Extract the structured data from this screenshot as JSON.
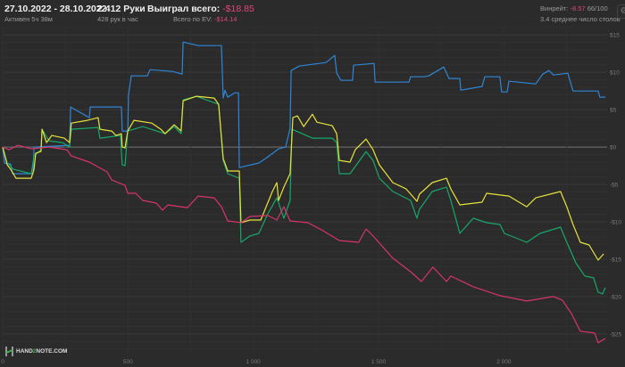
{
  "header": {
    "date_range": "27.10.2022 - 28.10.2022",
    "active_time": "Активен 5ч 38м",
    "hands": "2 412 Руки",
    "hands_per_hour": "428 рук в час",
    "won_total_label": "Выиграл всего:",
    "won_total_value": "-$18.85",
    "ev_label": "Всего по EV:",
    "ev_value": "-$14.14",
    "winrate_label": "Винрейт:",
    "winrate_value": "-8.57",
    "winrate_unit": "66/100",
    "avg_tables": "3.4 среднее число столов",
    "settings_icon": "gear-icon"
  },
  "logo": {
    "text_a": "HAND",
    "text_b": "2",
    "text_c": "NOTE.COM"
  },
  "chart_data": {
    "type": "line",
    "xlim": [
      0,
      2412
    ],
    "ylim": [
      -27.4,
      16.1
    ],
    "x_ticks": [
      0,
      500,
      1000,
      1500,
      2000
    ],
    "x_tick_labels": [
      "0",
      "500",
      "1 000",
      "1 500",
      "2 000"
    ],
    "y_ticks": [
      15,
      10,
      5,
      0,
      -5,
      -10,
      -15,
      -20,
      -25
    ],
    "y_tick_labels": [
      "$15",
      "$10",
      "$5",
      "$0",
      "-$5",
      "-$10",
      "-$15",
      "-$20",
      "-$25"
    ],
    "grid": true,
    "series": [
      {
        "color": "#2f86d6",
        "points": [
          [
            0,
            0
          ],
          [
            7,
            -2.14
          ],
          [
            32,
            -2.26
          ],
          [
            39,
            -3.57
          ],
          [
            121,
            -3.57
          ],
          [
            125,
            0
          ],
          [
            267,
            0.24
          ],
          [
            271,
            5.36
          ],
          [
            346,
            3.93
          ],
          [
            349,
            5.36
          ],
          [
            474,
            5.36
          ],
          [
            477,
            2.14
          ],
          [
            499,
            2.14
          ],
          [
            502,
            6.9
          ],
          [
            513,
            9.52
          ],
          [
            577,
            9.52
          ],
          [
            588,
            10.36
          ],
          [
            677,
            10.12
          ],
          [
            716,
            9.76
          ],
          [
            720,
            14.05
          ],
          [
            780,
            13.57
          ],
          [
            873,
            13.57
          ],
          [
            880,
            6.55
          ],
          [
            887,
            7.62
          ],
          [
            898,
            6.67
          ],
          [
            926,
            7.26
          ],
          [
            941,
            7.26
          ],
          [
            944,
            -2.74
          ],
          [
            1022,
            -2.14
          ],
          [
            1058,
            -1.31
          ],
          [
            1101,
            -0.24
          ],
          [
            1129,
            0
          ],
          [
            1147,
            2.5
          ],
          [
            1151,
            10.24
          ],
          [
            1183,
            10.83
          ],
          [
            1290,
            11.31
          ],
          [
            1325,
            12.26
          ],
          [
            1333,
            9.88
          ],
          [
            1350,
            8.93
          ],
          [
            1396,
            8.93
          ],
          [
            1400,
            10.95
          ],
          [
            1482,
            11.19
          ],
          [
            1486,
            8.69
          ],
          [
            1621,
            8.69
          ],
          [
            1628,
            9.4
          ],
          [
            1682,
            9.4
          ],
          [
            1700,
            9.52
          ],
          [
            1760,
            10.71
          ],
          [
            1781,
            9.17
          ],
          [
            1824,
            9.17
          ],
          [
            1828,
            7.62
          ],
          [
            1913,
            8.1
          ],
          [
            1924,
            9.4
          ],
          [
            1984,
            9.4
          ],
          [
            1991,
            7.38
          ],
          [
            2013,
            7.38
          ],
          [
            2020,
            8.81
          ],
          [
            2127,
            8.45
          ],
          [
            2155,
            9.76
          ],
          [
            2180,
            10.24
          ],
          [
            2198,
            9.64
          ],
          [
            2255,
            9.88
          ],
          [
            2276,
            7.5
          ],
          [
            2376,
            7.5
          ],
          [
            2383,
            6.67
          ],
          [
            2405,
            6.67
          ]
        ]
      },
      {
        "color": "#17a869",
        "points": [
          [
            0,
            0
          ],
          [
            18,
            -2.14
          ],
          [
            43,
            -2.98
          ],
          [
            114,
            -3.57
          ],
          [
            125,
            -1.19
          ],
          [
            153,
            -0.36
          ],
          [
            157,
            2.38
          ],
          [
            185,
            0.83
          ],
          [
            239,
            0.6
          ],
          [
            267,
            0
          ],
          [
            274,
            2.38
          ],
          [
            381,
            2.62
          ],
          [
            388,
            1.19
          ],
          [
            470,
            1.55
          ],
          [
            477,
            -2.38
          ],
          [
            488,
            -2.5
          ],
          [
            499,
            2.14
          ],
          [
            559,
            2.74
          ],
          [
            648,
            1.79
          ],
          [
            684,
            2.74
          ],
          [
            712,
            1.79
          ],
          [
            720,
            6.31
          ],
          [
            773,
            6.79
          ],
          [
            862,
            5.71
          ],
          [
            880,
            -1.79
          ],
          [
            898,
            -3.57
          ],
          [
            944,
            -4.17
          ],
          [
            951,
            -12.74
          ],
          [
            987,
            -11.9
          ],
          [
            1022,
            -11.55
          ],
          [
            1058,
            -8.93
          ],
          [
            1094,
            -6.79
          ],
          [
            1122,
            -9.52
          ],
          [
            1147,
            -7.14
          ],
          [
            1154,
            2.38
          ],
          [
            1236,
            1.19
          ],
          [
            1315,
            1.19
          ],
          [
            1333,
            0.6
          ],
          [
            1343,
            -3.57
          ],
          [
            1386,
            -3.57
          ],
          [
            1450,
            -0.6
          ],
          [
            1478,
            -1.79
          ],
          [
            1503,
            -4.17
          ],
          [
            1557,
            -5.95
          ],
          [
            1628,
            -7.14
          ],
          [
            1653,
            -9.52
          ],
          [
            1663,
            -8.33
          ],
          [
            1714,
            -5.95
          ],
          [
            1771,
            -5.36
          ],
          [
            1788,
            -7.14
          ],
          [
            1824,
            -11.55
          ],
          [
            1878,
            -9.52
          ],
          [
            1931,
            -10.12
          ],
          [
            1984,
            -10.36
          ],
          [
            2002,
            -11.55
          ],
          [
            2091,
            -12.74
          ],
          [
            2144,
            -11.55
          ],
          [
            2226,
            -10.71
          ],
          [
            2251,
            -12.74
          ],
          [
            2287,
            -15.48
          ],
          [
            2323,
            -17.26
          ],
          [
            2358,
            -17.5
          ],
          [
            2376,
            -19.4
          ],
          [
            2394,
            -19.64
          ],
          [
            2405,
            -18.81
          ]
        ]
      },
      {
        "color": "#e8e23a",
        "points": [
          [
            0,
            0
          ],
          [
            18,
            -2.38
          ],
          [
            32,
            -2.98
          ],
          [
            53,
            -4.17
          ],
          [
            114,
            -4.17
          ],
          [
            125,
            -2.98
          ],
          [
            132,
            -0.83
          ],
          [
            153,
            -0.6
          ],
          [
            157,
            2.38
          ],
          [
            175,
            0.6
          ],
          [
            196,
            1.55
          ],
          [
            246,
            1.19
          ],
          [
            267,
            0.6
          ],
          [
            274,
            3.21
          ],
          [
            338,
            3.57
          ],
          [
            381,
            3.93
          ],
          [
            388,
            2.38
          ],
          [
            435,
            2.14
          ],
          [
            452,
            1.55
          ],
          [
            474,
            1.79
          ],
          [
            477,
            0
          ],
          [
            488,
            -0.12
          ],
          [
            499,
            2.14
          ],
          [
            524,
            3.57
          ],
          [
            595,
            3.21
          ],
          [
            631,
            2.38
          ],
          [
            648,
            1.79
          ],
          [
            684,
            2.98
          ],
          [
            712,
            2.14
          ],
          [
            720,
            6.19
          ],
          [
            773,
            6.79
          ],
          [
            844,
            6.55
          ],
          [
            862,
            5.71
          ],
          [
            880,
            -1.55
          ],
          [
            898,
            -3.21
          ],
          [
            944,
            -3.21
          ],
          [
            951,
            -10.12
          ],
          [
            987,
            -9.76
          ],
          [
            1030,
            -9.76
          ],
          [
            1076,
            -5.95
          ],
          [
            1094,
            -4.76
          ],
          [
            1101,
            -7.14
          ],
          [
            1122,
            -5.36
          ],
          [
            1147,
            -3.57
          ],
          [
            1158,
            3.93
          ],
          [
            1176,
            4.17
          ],
          [
            1201,
            2.74
          ],
          [
            1236,
            4.4
          ],
          [
            1254,
            3.33
          ],
          [
            1315,
            2.86
          ],
          [
            1333,
            1.79
          ],
          [
            1343,
            -1.79
          ],
          [
            1386,
            -2.02
          ],
          [
            1407,
            -0.36
          ],
          [
            1450,
            1.07
          ],
          [
            1478,
            -0.36
          ],
          [
            1503,
            -2.38
          ],
          [
            1557,
            -4.76
          ],
          [
            1610,
            -5.6
          ],
          [
            1653,
            -7.26
          ],
          [
            1663,
            -6.31
          ],
          [
            1714,
            -4.76
          ],
          [
            1771,
            -4.17
          ],
          [
            1788,
            -5.6
          ],
          [
            1824,
            -7.74
          ],
          [
            1913,
            -7.38
          ],
          [
            1931,
            -6.19
          ],
          [
            2020,
            -6.55
          ],
          [
            2091,
            -7.98
          ],
          [
            2127,
            -6.79
          ],
          [
            2226,
            -5.95
          ],
          [
            2251,
            -7.98
          ],
          [
            2276,
            -10.36
          ],
          [
            2305,
            -12.74
          ],
          [
            2340,
            -13.1
          ],
          [
            2376,
            -15.12
          ],
          [
            2398,
            -14.29
          ]
        ]
      },
      {
        "color": "#d8336e",
        "points": [
          [
            0,
            0
          ],
          [
            25,
            -0.36
          ],
          [
            61,
            0.24
          ],
          [
            114,
            -0.24
          ],
          [
            185,
            0
          ],
          [
            256,
            -0.36
          ],
          [
            274,
            -1.19
          ],
          [
            346,
            -2.02
          ],
          [
            417,
            -3.33
          ],
          [
            435,
            -4.4
          ],
          [
            488,
            -5.12
          ],
          [
            499,
            -6.19
          ],
          [
            531,
            -6.19
          ],
          [
            559,
            -7.14
          ],
          [
            613,
            -7.5
          ],
          [
            638,
            -8.45
          ],
          [
            659,
            -7.74
          ],
          [
            737,
            -8.1
          ],
          [
            780,
            -6.55
          ],
          [
            844,
            -6.79
          ],
          [
            873,
            -7.98
          ],
          [
            898,
            -9.88
          ],
          [
            951,
            -10.12
          ],
          [
            987,
            -9.29
          ],
          [
            1058,
            -9.17
          ],
          [
            1094,
            -9.76
          ],
          [
            1122,
            -7.98
          ],
          [
            1147,
            -9.88
          ],
          [
            1218,
            -10.12
          ],
          [
            1272,
            -11.07
          ],
          [
            1343,
            -12.5
          ],
          [
            1421,
            -12.74
          ],
          [
            1450,
            -10.95
          ],
          [
            1478,
            -11.9
          ],
          [
            1557,
            -14.88
          ],
          [
            1628,
            -16.67
          ],
          [
            1671,
            -17.98
          ],
          [
            1717,
            -16.07
          ],
          [
            1771,
            -17.98
          ],
          [
            1788,
            -17.26
          ],
          [
            1878,
            -18.69
          ],
          [
            1984,
            -19.88
          ],
          [
            2091,
            -20.6
          ],
          [
            2198,
            -20
          ],
          [
            2233,
            -20.48
          ],
          [
            2269,
            -22.26
          ],
          [
            2305,
            -24.64
          ],
          [
            2362,
            -24.88
          ],
          [
            2376,
            -26.19
          ],
          [
            2405,
            -25.6
          ]
        ]
      }
    ]
  }
}
